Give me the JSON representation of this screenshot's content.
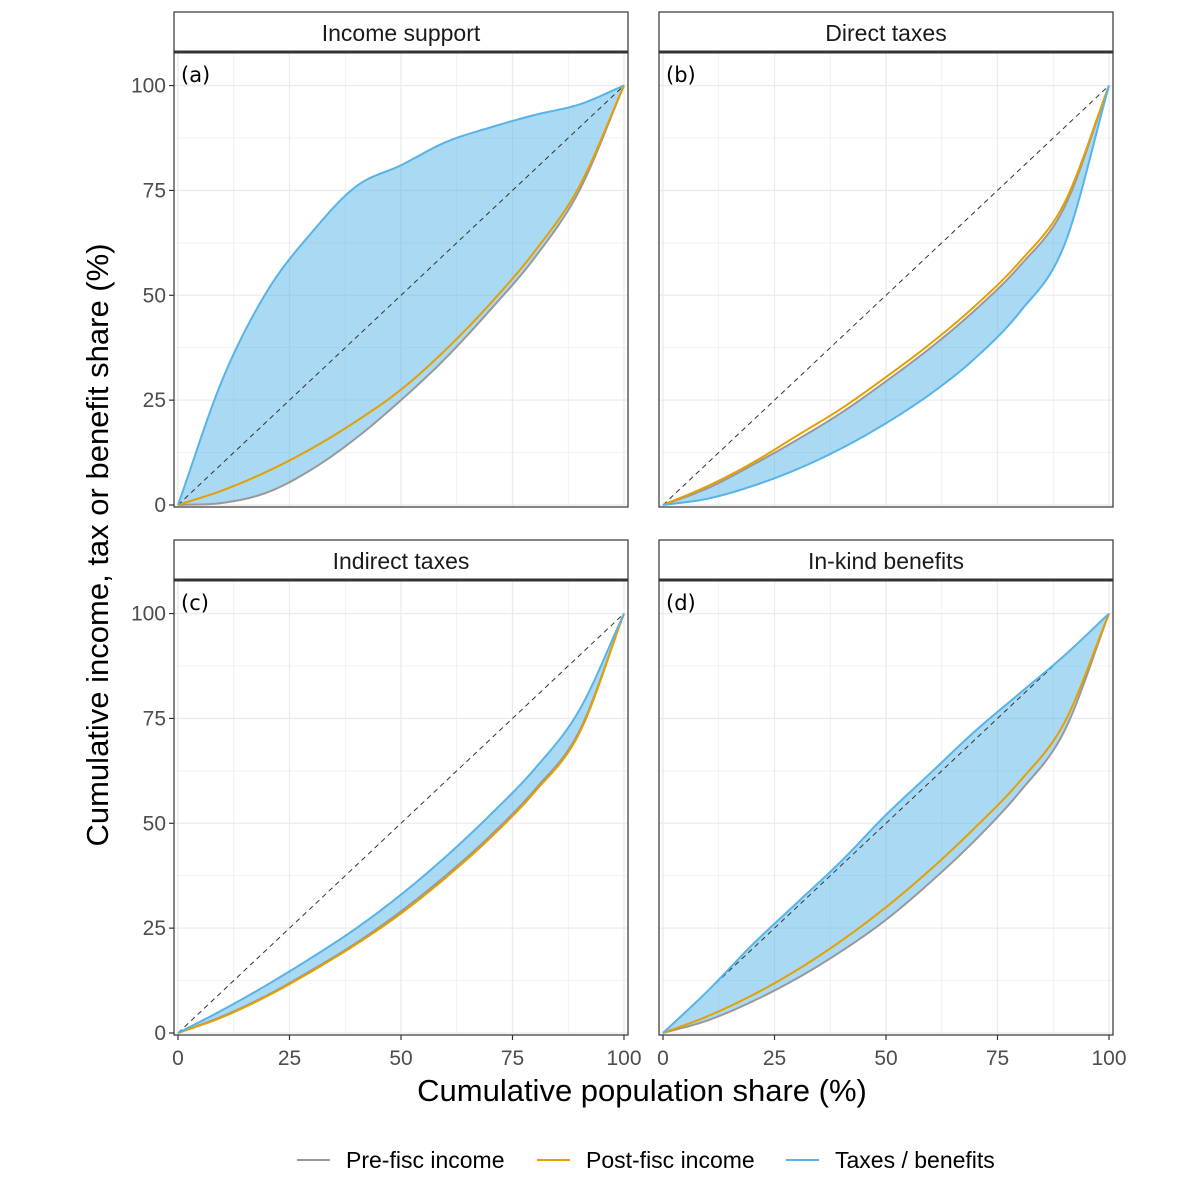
{
  "chart_data": {
    "type": "area",
    "xlabel": "Cumulative population share (%)",
    "ylabel": "Cumulative income, tax or benefit share (%)",
    "xlim": [
      0,
      100
    ],
    "ylim": [
      0,
      100
    ],
    "x_ticks": [
      "0",
      "25",
      "50",
      "75",
      "100"
    ],
    "y_ticks": [
      "0",
      "25",
      "50",
      "75",
      "100"
    ],
    "grid": true,
    "reference_line": "45-degree dashed diagonal",
    "legend": {
      "position": "bottom",
      "entries": [
        {
          "label": "Pre-fisc income",
          "color": "#999999"
        },
        {
          "label": "Post-fisc income",
          "color": "#E69F00"
        },
        {
          "label": "Taxes / benefits",
          "color": "#56B4E9"
        }
      ]
    },
    "x": [
      0,
      10,
      20,
      30,
      40,
      50,
      60,
      70,
      80,
      90,
      100
    ],
    "panels": [
      {
        "tag": "(a)",
        "title": "Income support",
        "series": [
          {
            "name": "Pre-fisc income",
            "values": [
              0,
              0.5,
              3,
              8.5,
              16,
              25,
              35,
              46.5,
              59,
              75,
              100
            ]
          },
          {
            "name": "Post-fisc income",
            "values": [
              0,
              3.5,
              8,
              13.5,
              20,
              27.5,
              37,
              48,
              60.5,
              76,
              100
            ]
          },
          {
            "name": "Taxes / benefits",
            "values": [
              0,
              30,
              51,
              65,
              76,
              81,
              86.5,
              90,
              93,
              95.5,
              100
            ]
          }
        ]
      },
      {
        "tag": "(b)",
        "title": "Direct taxes",
        "series": [
          {
            "name": "Pre-fisc income",
            "values": [
              0,
              4,
              9.5,
              15.5,
              22,
              29.5,
              37.5,
              46.5,
              57,
              71,
              100
            ]
          },
          {
            "name": "Post-fisc income",
            "values": [
              0,
              4.5,
              10,
              16.5,
              23,
              30.5,
              38.5,
              47.5,
              58,
              72,
              100
            ]
          },
          {
            "name": "Taxes / benefits",
            "values": [
              0,
              1.5,
              4.5,
              8.5,
              13.5,
              19.5,
              26.5,
              35,
              46,
              62,
              100
            ]
          }
        ]
      },
      {
        "tag": "(c)",
        "title": "Indirect taxes",
        "series": [
          {
            "name": "Pre-fisc income",
            "values": [
              0,
              4,
              9,
              15,
              21.5,
              29,
              37.5,
              47,
              58,
              72,
              100
            ]
          },
          {
            "name": "Post-fisc income",
            "values": [
              0,
              3.8,
              8.8,
              14.7,
              21.2,
              28.5,
              37,
              46.5,
              57.5,
              71.5,
              100
            ]
          },
          {
            "name": "Taxes / benefits",
            "values": [
              0,
              5.5,
              11.5,
              18,
              25,
              33,
              42,
              52,
              63,
              77,
              100
            ]
          }
        ]
      },
      {
        "tag": "(d)",
        "title": "In-kind benefits",
        "series": [
          {
            "name": "Pre-fisc income",
            "values": [
              0,
              3,
              7.5,
              13,
              19.5,
              27,
              36,
              46,
              57.5,
              72,
              100
            ]
          },
          {
            "name": "Post-fisc income",
            "values": [
              0,
              4,
              9,
              15,
              22,
              30,
              39,
              49,
              60,
              74,
              100
            ]
          },
          {
            "name": "Taxes / benefits",
            "values": [
              0,
              10,
              21,
              31,
              41,
              52,
              62,
              72,
              81,
              90,
              100
            ]
          }
        ]
      }
    ]
  }
}
